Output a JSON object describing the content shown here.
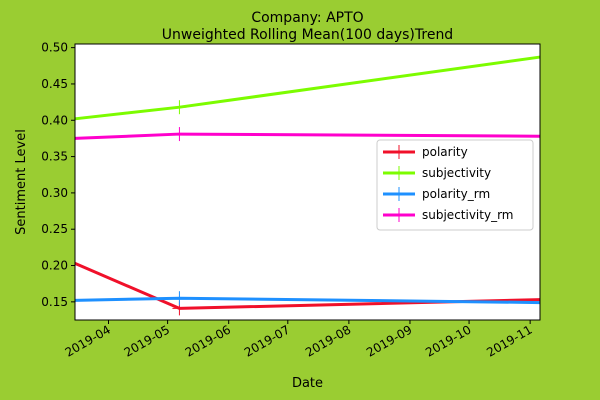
{
  "page": {
    "background": "#9ACD32"
  },
  "chart_data": {
    "type": "line",
    "title": "Company: APTO\nUnweighted Rolling Mean(100 days)Trend",
    "xlabel": "Date",
    "ylabel": "Sentiment Level",
    "xlim": [
      "2019-03-15",
      "2019-11-06"
    ],
    "ylim": [
      0.125,
      0.505
    ],
    "x_ticks": [
      "2019-04",
      "2019-05",
      "2019-06",
      "2019-07",
      "2019-08",
      "2019-09",
      "2019-10",
      "2019-11"
    ],
    "y_ticks": [
      0.15,
      0.2,
      0.25,
      0.3,
      0.35,
      0.4,
      0.45,
      0.5
    ],
    "y_tick_labels": [
      "0.15",
      "0.20",
      "0.25",
      "0.30",
      "0.35",
      "0.40",
      "0.45",
      "0.50"
    ],
    "grid": false,
    "legend_position": "center-right",
    "x": [
      "2019-03-15",
      "2019-05-07",
      "2019-11-06"
    ],
    "series": [
      {
        "name": "polarity",
        "color": "#F0102A",
        "values": [
          0.203,
          0.141,
          0.153
        ]
      },
      {
        "name": "subjectivity",
        "color": "#7CFC00",
        "values": [
          0.402,
          0.418,
          0.487
        ]
      },
      {
        "name": "polarity_rm",
        "color": "#1E90FF",
        "values": [
          0.152,
          0.155,
          0.149
        ]
      },
      {
        "name": "subjectivity_rm",
        "color": "#FF00CC",
        "values": [
          0.375,
          0.381,
          0.378
        ]
      }
    ],
    "marker_x": "2019-05-07"
  }
}
